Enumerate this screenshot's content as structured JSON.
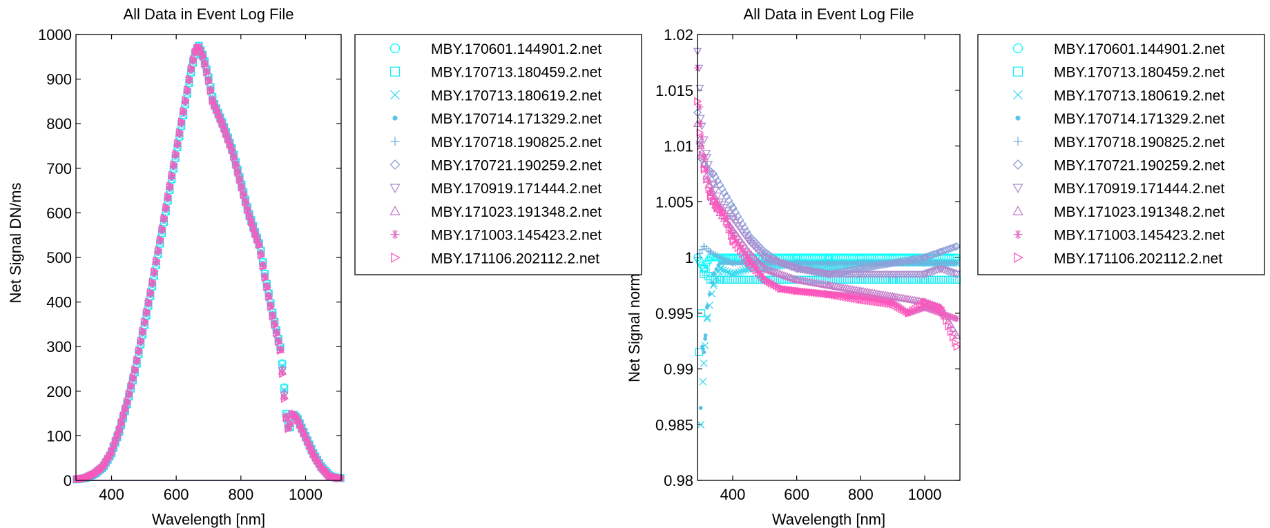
{
  "figure": {
    "background": "#ffffff",
    "legend_frame_color": "#000000",
    "series_colors": [
      "#00ffff",
      "#1cecf6",
      "#38d9ef",
      "#55c6e7",
      "#71b3df",
      "#8ea0d8",
      "#aa8ed0",
      "#c67bc8",
      "#e368c1",
      "#ff55bb"
    ]
  },
  "chart_data": [
    {
      "type": "scatter",
      "title": "All Data in Event Log File",
      "xlabel": "Wavelength [nm]",
      "ylabel": "Net Signal DN/ms",
      "xlim": [
        290,
        1110
      ],
      "ylim": [
        0,
        1000
      ],
      "xticks": [
        400,
        600,
        800,
        1000
      ],
      "yticks": [
        0,
        100,
        200,
        300,
        400,
        500,
        600,
        700,
        800,
        900,
        1000
      ],
      "grid": false,
      "legend_position": "right outside",
      "x": [
        290,
        320,
        350,
        375,
        400,
        425,
        450,
        475,
        500,
        525,
        550,
        575,
        600,
        625,
        650,
        660,
        670,
        685,
        700,
        715,
        730,
        750,
        775,
        800,
        825,
        850,
        860,
        875,
        900,
        925,
        935,
        940,
        950,
        960,
        975,
        1000,
        1025,
        1050,
        1075,
        1100
      ],
      "values": [
        2,
        5,
        15,
        30,
        60,
        110,
        175,
        250,
        340,
        430,
        530,
        630,
        730,
        830,
        930,
        960,
        975,
        950,
        905,
        850,
        825,
        790,
        740,
        670,
        600,
        545,
        525,
        460,
        370,
        290,
        200,
        150,
        110,
        150,
        140,
        100,
        60,
        30,
        10,
        5
      ],
      "baseline_series": {
        "x": [
          290,
          1110
        ],
        "values": [
          0,
          0
        ]
      },
      "series": [
        {
          "name": "MBY.170601.144901.2.net",
          "marker": "circle",
          "color": "#00ffff"
        },
        {
          "name": "MBY.170713.180459.2.net",
          "marker": "square",
          "color": "#1cecf6"
        },
        {
          "name": "MBY.170713.180619.2.net",
          "marker": "x",
          "color": "#38d9ef"
        },
        {
          "name": "MBY.170714.171329.2.net",
          "marker": "dot",
          "color": "#55c6e7"
        },
        {
          "name": "MBY.170718.190825.2.net",
          "marker": "plus",
          "color": "#71b3df"
        },
        {
          "name": "MBY.170721.190259.2.net",
          "marker": "diamond",
          "color": "#8ea0d8"
        },
        {
          "name": "MBY.170919.171444.2.net",
          "marker": "triangle-down",
          "color": "#aa8ed0"
        },
        {
          "name": "MBY.171023.191348.2.net",
          "marker": "triangle-up",
          "color": "#c67bc8"
        },
        {
          "name": "MBY.171003.145423.2.net",
          "marker": "asterisk",
          "color": "#e368c1"
        },
        {
          "name": "MBY.171106.202112.2.net",
          "marker": "triangle-right",
          "color": "#ff55bb"
        }
      ]
    },
    {
      "type": "scatter",
      "title": "All Data in Event Log File",
      "xlabel": "Wavelength [nm]",
      "ylabel": "Net Signal norm",
      "xlim": [
        290,
        1110
      ],
      "ylim": [
        0.98,
        1.02
      ],
      "xticks": [
        400,
        600,
        800,
        1000
      ],
      "yticks": [
        0.98,
        0.985,
        0.99,
        0.995,
        1,
        1.005,
        1.01,
        1.015,
        1.02
      ],
      "ytick_labels": [
        "0.98",
        "0.985",
        "0.99",
        "0.995",
        "1",
        "1.005",
        "1.01",
        "1.015",
        "1.02"
      ],
      "grid": false,
      "legend_position": "right outside",
      "series": [
        {
          "name": "MBY.170601.144901.2.net",
          "marker": "circle",
          "color": "#00ffff",
          "x": [
            290,
            310,
            330,
            360,
            400,
            450,
            500,
            600,
            700,
            800,
            900,
            1000,
            1100
          ],
          "values": [
            1.0,
            0.999,
            1.0,
            1.0,
            1.0,
            1.0,
            1.0,
            1.0,
            1.0,
            1.0,
            1.0,
            1.0,
            1.0
          ]
        },
        {
          "name": "MBY.170713.180459.2.net",
          "marker": "square",
          "color": "#1cecf6",
          "x": [
            295,
            310,
            330,
            360,
            400,
            450,
            500,
            600,
            700,
            800,
            900,
            1000,
            1100
          ],
          "values": [
            0.9915,
            0.999,
            0.998,
            0.998,
            0.998,
            0.998,
            0.998,
            0.998,
            0.998,
            0.998,
            0.998,
            0.998,
            0.998
          ]
        },
        {
          "name": "MBY.170713.180619.2.net",
          "marker": "x",
          "color": "#38d9ef",
          "x": [
            300,
            310,
            320,
            340,
            360,
            400,
            450,
            500,
            600,
            700,
            800,
            900,
            1000,
            1100
          ],
          "values": [
            0.985,
            0.9905,
            0.9945,
            0.9975,
            0.999,
            0.9985,
            0.999,
            0.999,
            0.9995,
            0.999,
            0.9995,
            0.9995,
            0.9995,
            0.9995
          ]
        },
        {
          "name": "MBY.170714.171329.2.net",
          "marker": "dot",
          "color": "#55c6e7",
          "x": [
            300,
            305,
            310,
            315,
            320,
            340,
            360,
            400,
            500,
            600,
            700,
            800,
            900,
            1000,
            1100
          ],
          "values": [
            0.9865,
            0.992,
            0.9915,
            0.993,
            0.9955,
            0.9985,
            0.9995,
            0.9995,
            0.9995,
            0.9995,
            0.9995,
            0.9995,
            0.9995,
            0.9995,
            0.9995
          ]
        },
        {
          "name": "MBY.170718.190825.2.net",
          "marker": "plus",
          "color": "#71b3df",
          "x": [
            290,
            310,
            330,
            360,
            400,
            450,
            500,
            600,
            700,
            800,
            900,
            1000,
            1100
          ],
          "values": [
            1.0,
            1.001,
            1.0005,
            1.0,
            0.9995,
            0.9995,
            0.9995,
            0.9995,
            0.9995,
            0.9995,
            0.9995,
            0.9995,
            0.9995
          ]
        },
        {
          "name": "MBY.170721.190259.2.net",
          "marker": "diamond",
          "color": "#8ea0d8",
          "x": [
            290,
            300,
            320,
            340,
            360,
            380,
            400,
            450,
            500,
            550,
            600,
            700,
            800,
            900,
            1000,
            1050,
            1100
          ],
          "values": [
            1.013,
            1.009,
            1.008,
            1.0075,
            1.0065,
            1.0055,
            1.0045,
            1.002,
            1.0005,
            0.9995,
            0.999,
            0.9985,
            0.999,
            0.9995,
            1.0,
            1.0005,
            1.001
          ]
        },
        {
          "name": "MBY.170919.171444.2.net",
          "marker": "triangle-down",
          "color": "#aa8ed0",
          "x": [
            290,
            295,
            300,
            320,
            340,
            360,
            400,
            450,
            500,
            600,
            700,
            800,
            900,
            1000,
            1050,
            1100
          ],
          "values": [
            1.0185,
            1.017,
            1.0125,
            1.009,
            1.0065,
            1.005,
            1.0035,
            1.0015,
            1.0,
            0.999,
            0.9985,
            0.9985,
            0.9985,
            0.9985,
            0.999,
            0.9985
          ]
        },
        {
          "name": "MBY.171023.191348.2.net",
          "marker": "triangle-up",
          "color": "#c67bc8",
          "x": [
            290,
            300,
            320,
            340,
            360,
            400,
            450,
            500,
            600,
            700,
            800,
            900,
            1000,
            1050,
            1100
          ],
          "values": [
            1.012,
            1.01,
            1.007,
            1.005,
            1.004,
            1.0025,
            1.0005,
            0.999,
            0.998,
            0.9975,
            0.997,
            0.9965,
            0.996,
            0.9955,
            0.993
          ]
        },
        {
          "name": "MBY.171003.145423.2.net",
          "marker": "asterisk",
          "color": "#e368c1",
          "x": [
            290,
            300,
            310,
            330,
            350,
            380,
            400,
            450,
            500,
            550,
            600,
            700,
            800,
            900,
            950,
            1000,
            1050,
            1100
          ],
          "values": [
            1.017,
            1.012,
            1.009,
            1.006,
            1.005,
            1.0035,
            1.002,
            1.0,
            0.998,
            0.9972,
            0.997,
            0.9967,
            0.9965,
            0.996,
            0.995,
            0.9955,
            0.995,
            0.9945
          ]
        },
        {
          "name": "MBY.171106.202112.2.net",
          "marker": "triangle-right",
          "color": "#ff55bb",
          "x": [
            290,
            300,
            310,
            330,
            350,
            370,
            400,
            450,
            500,
            550,
            600,
            700,
            800,
            900,
            950,
            1000,
            1050,
            1100
          ],
          "values": [
            1.014,
            1.01,
            1.008,
            1.0055,
            1.0045,
            1.004,
            1.0015,
            0.9995,
            0.998,
            0.9972,
            0.997,
            0.9967,
            0.9962,
            0.9958,
            0.995,
            0.996,
            0.9955,
            0.992
          ]
        }
      ]
    }
  ]
}
